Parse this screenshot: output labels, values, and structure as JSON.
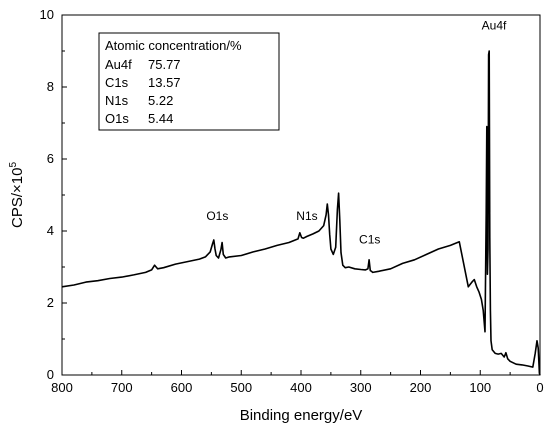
{
  "chart_data": {
    "type": "line",
    "xlabel": "Binding energy/eV",
    "ylabel_main": "CPS/×10",
    "ylabel_exp": "5",
    "xlim": [
      800,
      0
    ],
    "ylim": [
      0,
      10
    ],
    "x_ticks": [
      800,
      700,
      600,
      500,
      400,
      300,
      200,
      100,
      0
    ],
    "y_ticks": [
      0,
      2,
      4,
      6,
      8,
      10
    ],
    "grid": false,
    "series": [
      {
        "x": [
          800,
          780,
          760,
          740,
          720,
          700,
          680,
          660,
          650,
          645,
          640,
          630,
          610,
          590,
          570,
          560,
          552,
          548,
          546,
          544,
          542,
          538,
          534,
          532,
          530,
          526,
          520,
          500,
          480,
          460,
          440,
          420,
          405,
          402,
          399,
          396,
          390,
          380,
          370,
          362,
          358,
          356,
          354,
          352,
          350,
          346,
          342,
          339,
          337,
          335,
          333,
          330,
          326,
          320,
          310,
          300,
          292,
          288,
          286,
          284,
          282,
          280,
          270,
          250,
          230,
          210,
          190,
          170,
          150,
          135,
          120,
          113,
          110,
          106,
          102,
          98,
          95,
          92,
          90,
          89,
          88,
          87,
          86,
          85,
          84,
          83,
          82,
          80,
          75,
          70,
          65,
          60,
          57,
          54,
          50,
          40,
          30,
          20,
          12,
          8,
          5,
          3,
          1,
          0
        ],
        "y": [
          2.45,
          2.5,
          2.58,
          2.62,
          2.68,
          2.72,
          2.78,
          2.85,
          2.92,
          3.05,
          2.95,
          2.98,
          3.08,
          3.15,
          3.22,
          3.28,
          3.42,
          3.65,
          3.75,
          3.5,
          3.32,
          3.25,
          3.48,
          3.68,
          3.35,
          3.25,
          3.28,
          3.32,
          3.42,
          3.5,
          3.6,
          3.68,
          3.78,
          3.95,
          3.82,
          3.8,
          3.85,
          3.92,
          4.0,
          4.15,
          4.45,
          4.75,
          4.45,
          3.9,
          3.5,
          3.35,
          3.55,
          4.6,
          5.05,
          4.3,
          3.4,
          3.05,
          2.98,
          3.0,
          2.95,
          2.93,
          2.92,
          2.95,
          3.2,
          2.9,
          2.88,
          2.85,
          2.88,
          2.95,
          3.1,
          3.2,
          3.35,
          3.5,
          3.6,
          3.7,
          2.45,
          2.6,
          2.65,
          2.45,
          2.3,
          2.1,
          1.8,
          1.2,
          4.5,
          6.9,
          2.8,
          3.5,
          8.9,
          9.0,
          3.8,
          1.8,
          0.95,
          0.7,
          0.6,
          0.58,
          0.6,
          0.5,
          0.62,
          0.45,
          0.38,
          0.3,
          0.28,
          0.25,
          0.22,
          0.6,
          0.95,
          0.75,
          0.05,
          0.0
        ]
      }
    ],
    "annotations": [
      {
        "text": "O1s",
        "x": 540,
        "y": 4.3
      },
      {
        "text": "N1s",
        "x": 390,
        "y": 4.3
      },
      {
        "text": "C1s",
        "x": 285,
        "y": 3.65
      },
      {
        "text": "Au4f",
        "x": 77,
        "y": 9.6
      }
    ],
    "legend_box": {
      "title": "Atomic concentration/%",
      "rows": [
        {
          "label": "Au4f",
          "value": "75.77"
        },
        {
          "label": "C1s",
          "value": "13.57"
        },
        {
          "label": "N1s",
          "value": "5.22"
        },
        {
          "label": "O1s",
          "value": "5.44"
        }
      ]
    }
  }
}
